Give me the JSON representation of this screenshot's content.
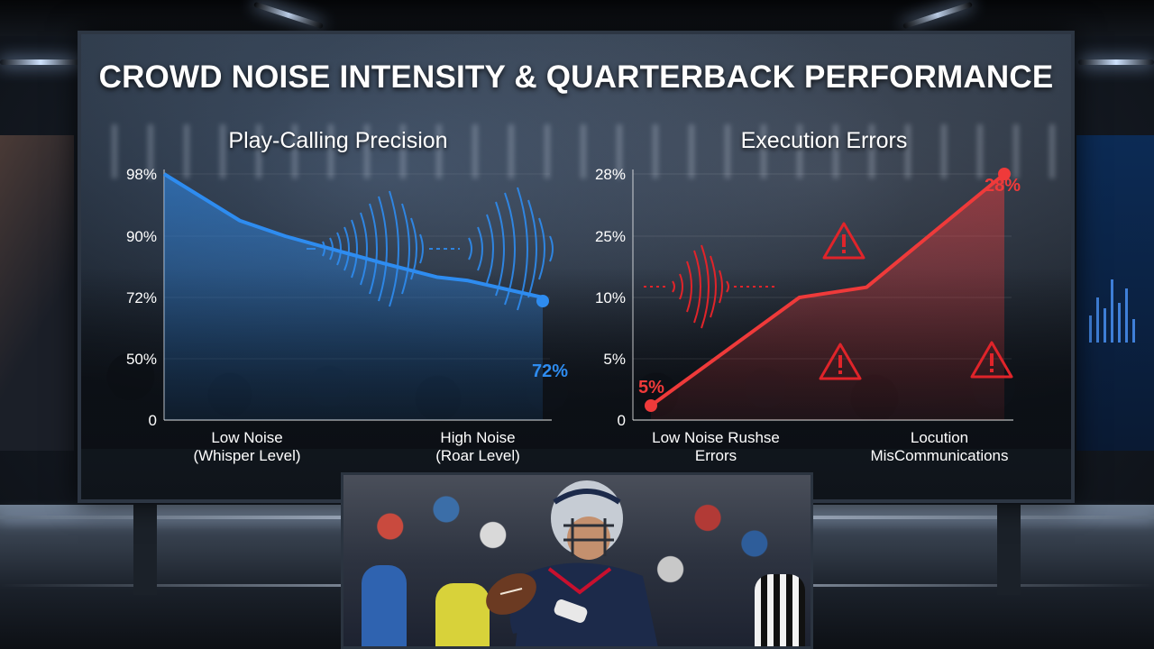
{
  "title": "CROWD NOISE INTENSITY & QUARTERBACK PERFORMANCE",
  "colors": {
    "blue_series": "#2e8cf0",
    "red_series": "#ef3a3a",
    "warning": "#e0242a"
  },
  "icons": [
    "warning-triangle-icon",
    "sound-wave-icon"
  ],
  "chart_data": [
    {
      "type": "area",
      "title": "Play-Calling Precision",
      "y_tick_labels": [
        "98%",
        "90%",
        "72%",
        "50%",
        "0"
      ],
      "x_categories": [
        {
          "line1": "Low Noise",
          "line2": "(Whisper Level)"
        },
        {
          "line1": "High Noise",
          "line2": "(Roar Level)"
        }
      ],
      "points": [
        {
          "x": 0.0,
          "y": 98
        },
        {
          "x": 0.2,
          "y": 92
        },
        {
          "x": 0.32,
          "y": 90
        },
        {
          "x": 0.58,
          "y": 82
        },
        {
          "x": 0.72,
          "y": 78
        },
        {
          "x": 0.8,
          "y": 77
        },
        {
          "x": 1.0,
          "y": 72
        }
      ],
      "end_label": "72%",
      "color": "#2e8cf0"
    },
    {
      "type": "area",
      "title": "Execution Errors",
      "y_tick_labels": [
        "28%",
        "25%",
        "10%",
        "5%",
        "0"
      ],
      "x_categories": [
        {
          "line1": "Low Noise Rushse",
          "line2": "Errors"
        },
        {
          "line1": "Locution",
          "line2": "MisCommunications"
        }
      ],
      "points": [
        {
          "x": 0.0,
          "y": 5
        },
        {
          "x": 0.42,
          "y": 10
        },
        {
          "x": 0.61,
          "y": 12.5
        },
        {
          "x": 1.0,
          "y": 28
        }
      ],
      "start_label": "5%",
      "end_label": "28%",
      "color": "#ef3a3a"
    }
  ]
}
